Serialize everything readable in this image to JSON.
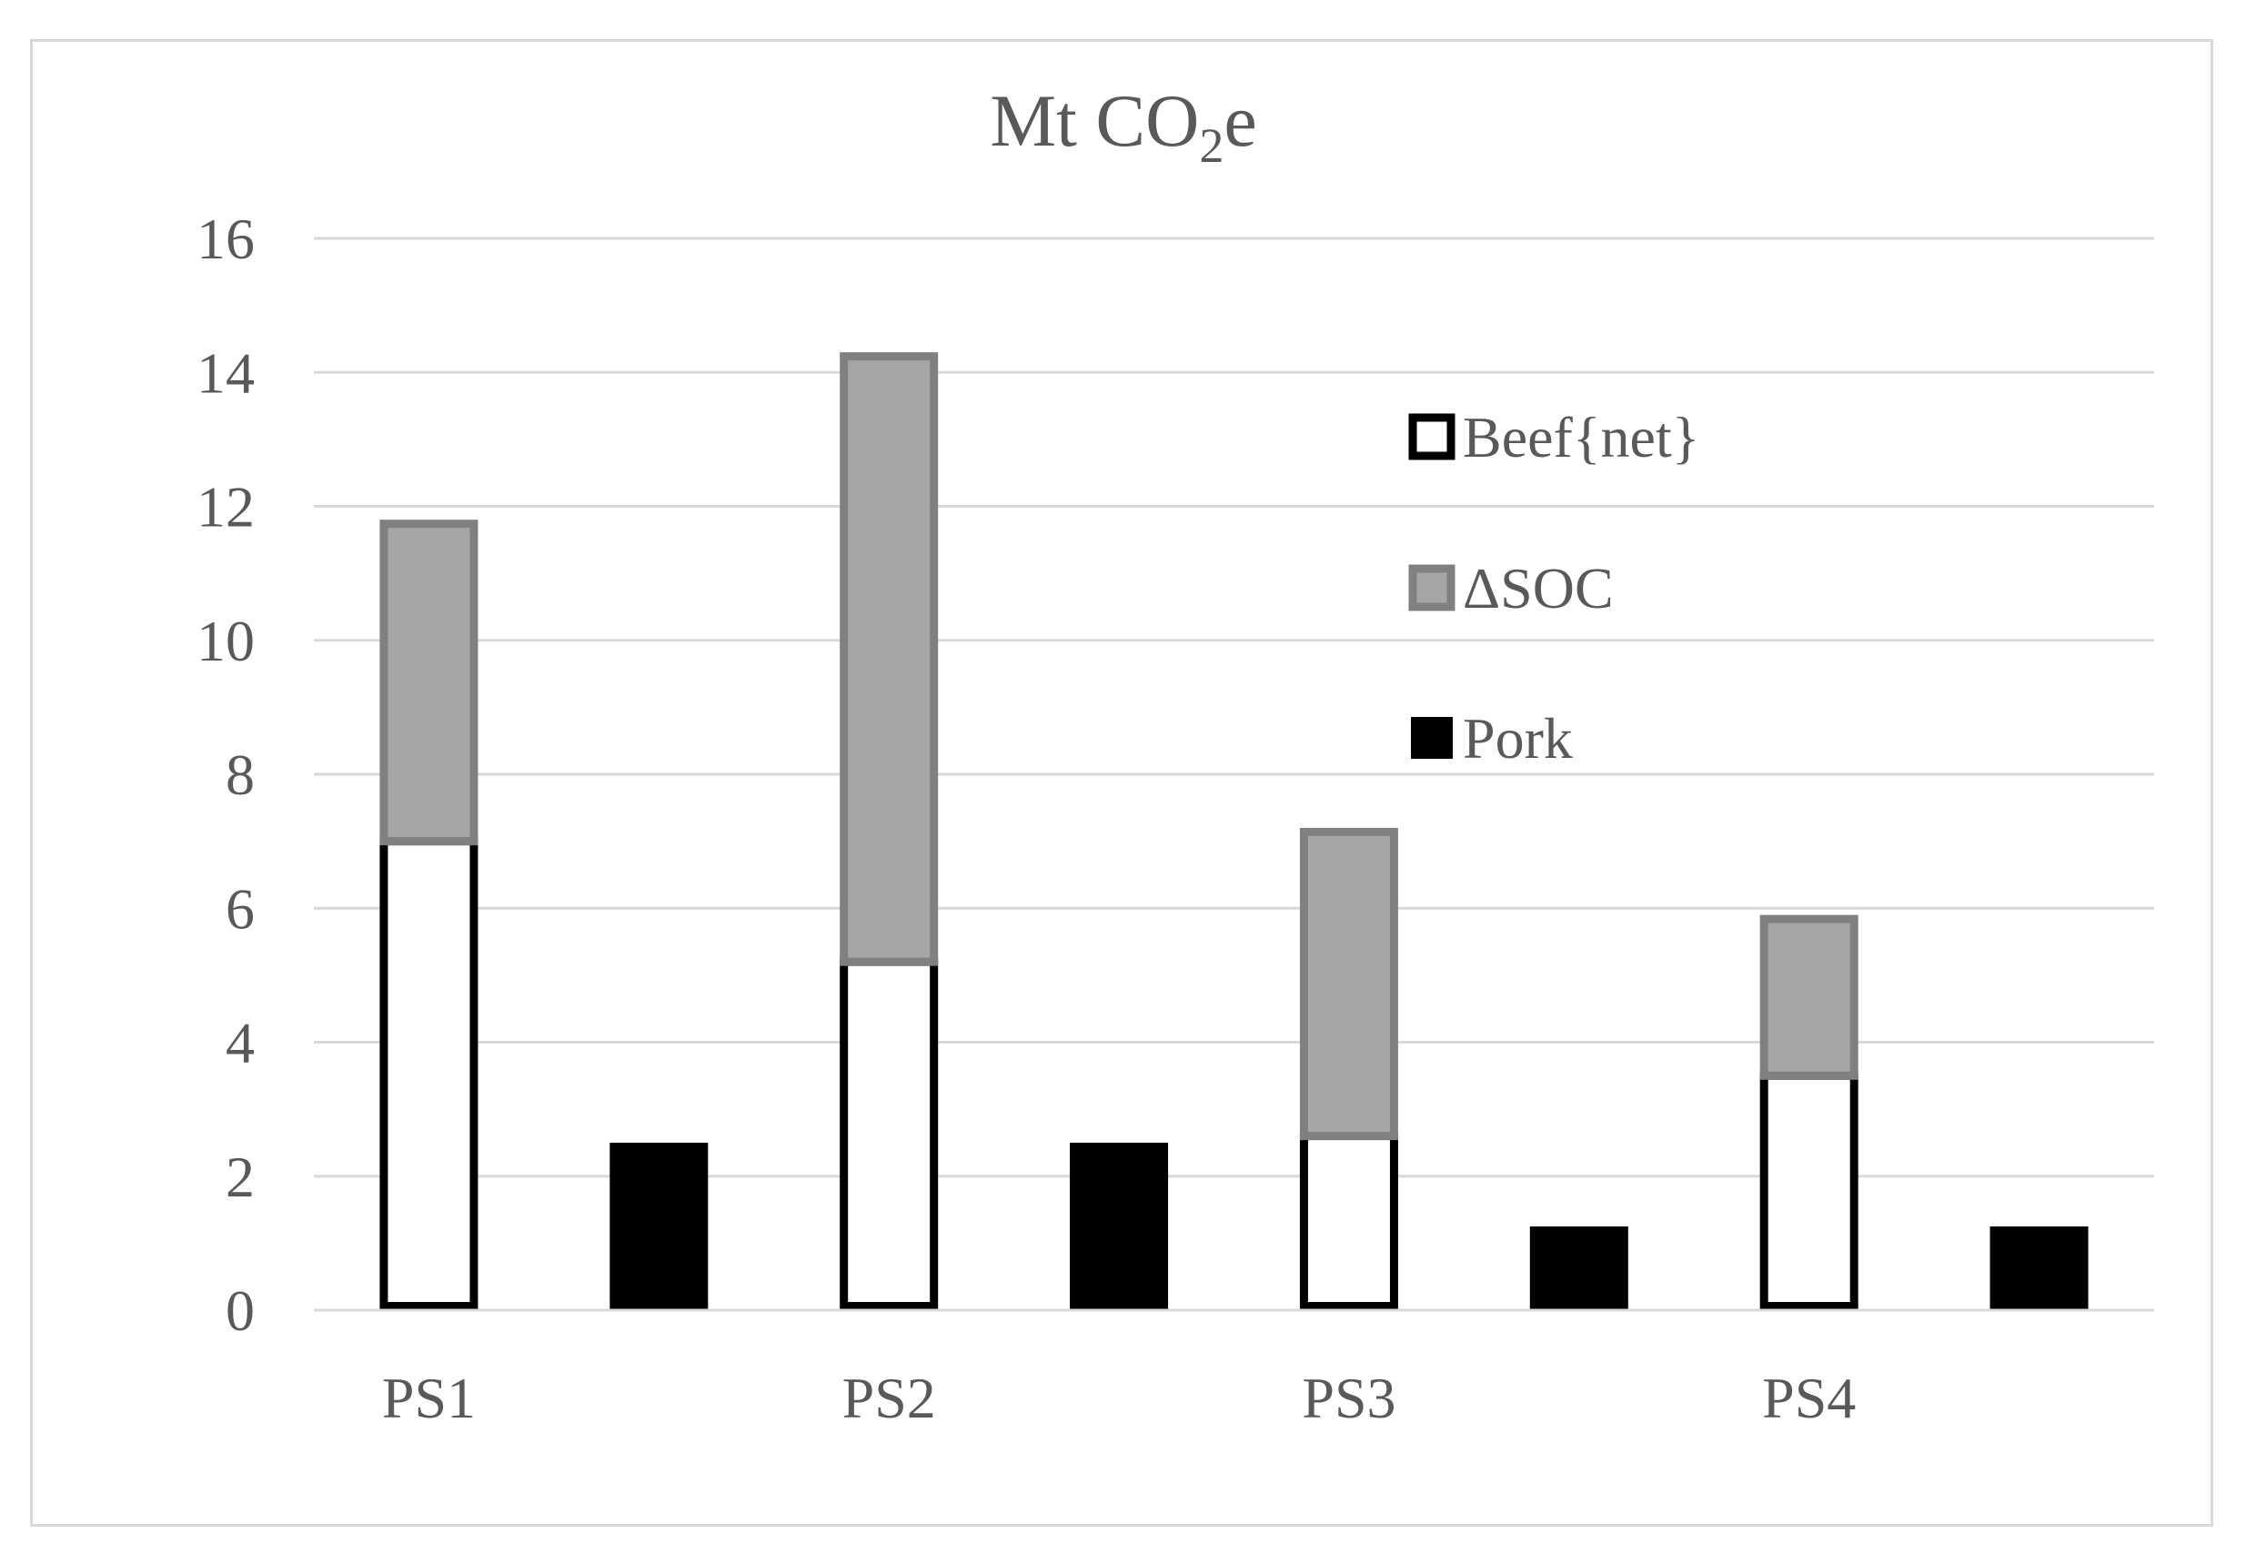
{
  "chart_data": {
    "type": "bar",
    "title_main": "Mt CO",
    "title_sub": "2",
    "title_tail": "e",
    "categories": [
      "PS1",
      "PS2",
      "PS3",
      "PS4"
    ],
    "ylim": [
      0,
      16
    ],
    "yticks": [
      "0",
      "2",
      "4",
      "6",
      "8",
      "10",
      "12",
      "14",
      "16"
    ],
    "grid": true,
    "legend_position": "right",
    "series": [
      {
        "name": "Beef{net}",
        "stack": "beef",
        "values": [
          7.0,
          5.2,
          2.6,
          3.5
        ],
        "fill": "#ffffff",
        "stroke": "#000000"
      },
      {
        "name": "ΔSOC",
        "stack": "beef",
        "values": [
          4.8,
          9.1,
          4.6,
          2.4
        ],
        "fill": "#a6a6a6",
        "stroke": "#808080"
      },
      {
        "name": "Pork",
        "stack": "pork",
        "values": [
          2.5,
          2.5,
          1.25,
          1.25
        ],
        "fill": "#000000",
        "stroke": "#000000"
      }
    ]
  }
}
